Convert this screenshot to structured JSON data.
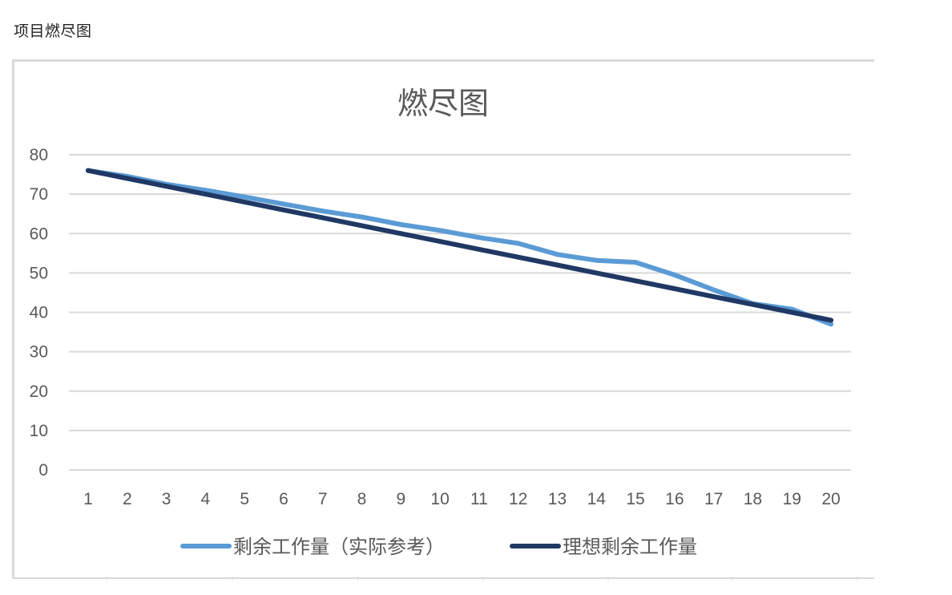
{
  "page": {
    "heading": "项目燃尽图"
  },
  "chart_data": {
    "type": "line",
    "title": "燃尽图",
    "xlabel": "",
    "ylabel": "",
    "x": [
      1,
      2,
      3,
      4,
      5,
      6,
      7,
      8,
      9,
      10,
      11,
      12,
      13,
      14,
      15,
      16,
      17,
      18,
      19,
      20
    ],
    "ylim": [
      0,
      80
    ],
    "yticks": [
      0,
      10,
      20,
      30,
      40,
      50,
      60,
      70,
      80
    ],
    "grid": true,
    "legend_position": "bottom",
    "series": [
      {
        "name": "剩余工作量（实际参考）",
        "color": "#5b9bd5",
        "values": [
          76,
          74.5,
          72.5,
          71,
          69.3,
          67.5,
          65.7,
          64.2,
          62.3,
          60.8,
          59,
          57.5,
          54.7,
          53.2,
          52.7,
          49.5,
          45.7,
          42.2,
          40.8,
          37
        ]
      },
      {
        "name": "理想剩余工作量",
        "color": "#203864",
        "values": [
          76,
          74,
          72,
          70,
          68,
          66,
          64,
          62,
          60,
          58,
          56,
          54,
          52,
          50,
          48,
          46,
          44,
          42,
          40,
          38
        ]
      }
    ]
  }
}
